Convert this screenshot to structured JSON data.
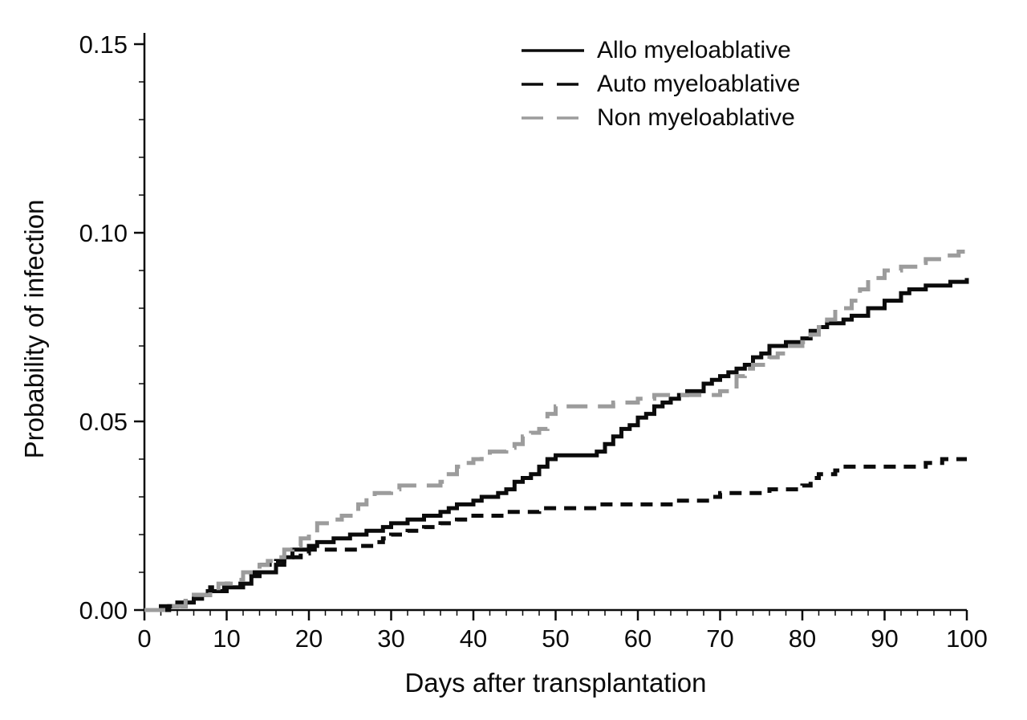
{
  "figure": {
    "background": "#ffffff",
    "axis_color": "#0b0b0b",
    "gray_series_color": "#9c9c9c"
  },
  "chart_data": {
    "type": "line",
    "subtype": "step-after cumulative incidence curves",
    "title": "",
    "xlabel": "Days after transplantation",
    "ylabel": "Probability of infection",
    "xlim": [
      0,
      100
    ],
    "ylim": [
      0,
      0.15
    ],
    "x_ticks": [
      0,
      10,
      20,
      30,
      40,
      50,
      60,
      70,
      80,
      90,
      100
    ],
    "x_minor_step": 2,
    "y_ticks": [
      0,
      0.05,
      0.1,
      0.15
    ],
    "y_tick_labels": [
      "0.00",
      "0.05",
      "0.10",
      "0.15"
    ],
    "y_minor_step": 0.01,
    "grid": false,
    "legend_position": "top-center-inside",
    "axis_color": "#0b0b0b",
    "series": [
      {
        "name": "Allo myeloablative",
        "color": "#0b0b0b",
        "dash": "solid",
        "points": [
          [
            0,
            0
          ],
          [
            2,
            0.001
          ],
          [
            4,
            0.002
          ],
          [
            6,
            0.004
          ],
          [
            8,
            0.005
          ],
          [
            10,
            0.006
          ],
          [
            12,
            0.007
          ],
          [
            13,
            0.009
          ],
          [
            14,
            0.01
          ],
          [
            16,
            0.012
          ],
          [
            17,
            0.014
          ],
          [
            18,
            0.016
          ],
          [
            20,
            0.017
          ],
          [
            21,
            0.018
          ],
          [
            23,
            0.019
          ],
          [
            25,
            0.02
          ],
          [
            27,
            0.021
          ],
          [
            29,
            0.022
          ],
          [
            30,
            0.023
          ],
          [
            32,
            0.024
          ],
          [
            34,
            0.025
          ],
          [
            36,
            0.026
          ],
          [
            37,
            0.027
          ],
          [
            38,
            0.028
          ],
          [
            40,
            0.029
          ],
          [
            41,
            0.03
          ],
          [
            43,
            0.031
          ],
          [
            44,
            0.032
          ],
          [
            45,
            0.034
          ],
          [
            46,
            0.035
          ],
          [
            47,
            0.036
          ],
          [
            48,
            0.038
          ],
          [
            49,
            0.04
          ],
          [
            50,
            0.041
          ],
          [
            55,
            0.042
          ],
          [
            56,
            0.044
          ],
          [
            57,
            0.046
          ],
          [
            58,
            0.048
          ],
          [
            59,
            0.049
          ],
          [
            60,
            0.051
          ],
          [
            61,
            0.052
          ],
          [
            62,
            0.054
          ],
          [
            63,
            0.055
          ],
          [
            64,
            0.056
          ],
          [
            65,
            0.057
          ],
          [
            66,
            0.058
          ],
          [
            68,
            0.06
          ],
          [
            69,
            0.061
          ],
          [
            70,
            0.062
          ],
          [
            71,
            0.063
          ],
          [
            72,
            0.064
          ],
          [
            73,
            0.065
          ],
          [
            74,
            0.067
          ],
          [
            75,
            0.068
          ],
          [
            76,
            0.07
          ],
          [
            78,
            0.071
          ],
          [
            80,
            0.072
          ],
          [
            81,
            0.074
          ],
          [
            82,
            0.075
          ],
          [
            83,
            0.076
          ],
          [
            85,
            0.077
          ],
          [
            86,
            0.078
          ],
          [
            88,
            0.08
          ],
          [
            90,
            0.082
          ],
          [
            92,
            0.084
          ],
          [
            93,
            0.085
          ],
          [
            95,
            0.086
          ],
          [
            98,
            0.087
          ],
          [
            100,
            0.088
          ]
        ]
      },
      {
        "name": "Auto myeloablative",
        "color": "#0b0b0b",
        "dash": "dashed",
        "points": [
          [
            0,
            0
          ],
          [
            3,
            0.001
          ],
          [
            5,
            0.003
          ],
          [
            7,
            0.005
          ],
          [
            8,
            0.006
          ],
          [
            10,
            0.007
          ],
          [
            12,
            0.009
          ],
          [
            13,
            0.01
          ],
          [
            14,
            0.012
          ],
          [
            16,
            0.013
          ],
          [
            17,
            0.014
          ],
          [
            19,
            0.015
          ],
          [
            20,
            0.016
          ],
          [
            26,
            0.017
          ],
          [
            28,
            0.018
          ],
          [
            29,
            0.019
          ],
          [
            30,
            0.02
          ],
          [
            32,
            0.021
          ],
          [
            34,
            0.022
          ],
          [
            36,
            0.023
          ],
          [
            38,
            0.024
          ],
          [
            40,
            0.025
          ],
          [
            44,
            0.026
          ],
          [
            48,
            0.027
          ],
          [
            55,
            0.028
          ],
          [
            65,
            0.029
          ],
          [
            69,
            0.03
          ],
          [
            70,
            0.031
          ],
          [
            76,
            0.032
          ],
          [
            80,
            0.033
          ],
          [
            81,
            0.035
          ],
          [
            82,
            0.036
          ],
          [
            84,
            0.037
          ],
          [
            85,
            0.038
          ],
          [
            95,
            0.039
          ],
          [
            97,
            0.04
          ],
          [
            100,
            0.04
          ]
        ]
      },
      {
        "name": "Non myeloablative",
        "color": "#9c9c9c",
        "dash": "long-dash",
        "points": [
          [
            0,
            0
          ],
          [
            3,
            0.001
          ],
          [
            5,
            0.003
          ],
          [
            6,
            0.004
          ],
          [
            8,
            0.005
          ],
          [
            9,
            0.007
          ],
          [
            11,
            0.008
          ],
          [
            12,
            0.01
          ],
          [
            14,
            0.012
          ],
          [
            15,
            0.013
          ],
          [
            16,
            0.014
          ],
          [
            17,
            0.016
          ],
          [
            18,
            0.017
          ],
          [
            19,
            0.019
          ],
          [
            20,
            0.02
          ],
          [
            21,
            0.023
          ],
          [
            23,
            0.024
          ],
          [
            24,
            0.025
          ],
          [
            26,
            0.028
          ],
          [
            27,
            0.03
          ],
          [
            28,
            0.031
          ],
          [
            30,
            0.032
          ],
          [
            31,
            0.033
          ],
          [
            36,
            0.034
          ],
          [
            37,
            0.036
          ],
          [
            38,
            0.038
          ],
          [
            39,
            0.039
          ],
          [
            40,
            0.04
          ],
          [
            41,
            0.041
          ],
          [
            42,
            0.042
          ],
          [
            44,
            0.043
          ],
          [
            45,
            0.044
          ],
          [
            46,
            0.046
          ],
          [
            47,
            0.047
          ],
          [
            48,
            0.048
          ],
          [
            49,
            0.052
          ],
          [
            50,
            0.054
          ],
          [
            57,
            0.055
          ],
          [
            60,
            0.056
          ],
          [
            62,
            0.057
          ],
          [
            70,
            0.058
          ],
          [
            72,
            0.062
          ],
          [
            73,
            0.064
          ],
          [
            74,
            0.065
          ],
          [
            76,
            0.067
          ],
          [
            77,
            0.068
          ],
          [
            78,
            0.07
          ],
          [
            80,
            0.071
          ],
          [
            81,
            0.073
          ],
          [
            82,
            0.075
          ],
          [
            83,
            0.077
          ],
          [
            84,
            0.08
          ],
          [
            86,
            0.082
          ],
          [
            87,
            0.085
          ],
          [
            88,
            0.088
          ],
          [
            90,
            0.09
          ],
          [
            92,
            0.091
          ],
          [
            94,
            0.092
          ],
          [
            95,
            0.093
          ],
          [
            97,
            0.094
          ],
          [
            99,
            0.095
          ],
          [
            100,
            0.096
          ]
        ]
      }
    ]
  }
}
